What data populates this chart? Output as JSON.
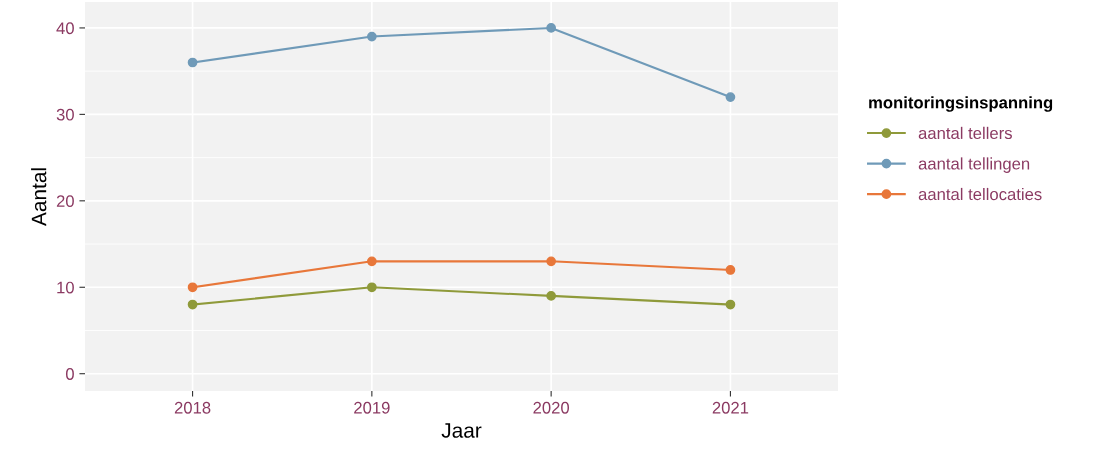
{
  "chart_data": {
    "type": "line",
    "xlabel": "Jaar",
    "ylabel": "Aantal",
    "legend_title": "monitoringsinspanning",
    "categories": [
      "2018",
      "2019",
      "2020",
      "2021"
    ],
    "series": [
      {
        "name": "aantal tellers",
        "color": "#8f9a3a",
        "values": [
          8,
          10,
          9,
          8
        ]
      },
      {
        "name": "aantal tellingen",
        "color": "#6f9ab8",
        "values": [
          36,
          39,
          40,
          32
        ]
      },
      {
        "name": "aantal tellocaties",
        "color": "#e8773a",
        "values": [
          10,
          13,
          13,
          12
        ]
      }
    ],
    "ylim": [
      -2,
      43
    ],
    "yticks": [
      0,
      10,
      20,
      30,
      40
    ],
    "grid": true,
    "legend": "right",
    "marker": "circle",
    "line_style": "solid"
  }
}
